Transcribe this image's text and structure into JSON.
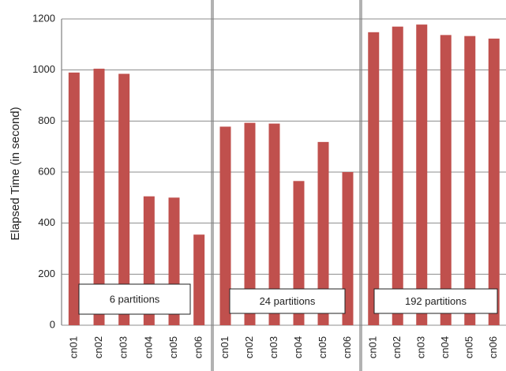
{
  "chart_data": [
    {
      "type": "bar",
      "y_label": "Elapsed Time (in second)",
      "categories": [
        "cn01",
        "cn02",
        "cn03",
        "cn04",
        "cn05",
        "cn06"
      ],
      "values": [
        990,
        1005,
        985,
        505,
        500,
        355
      ],
      "color": "#c0504d",
      "annotation": "6 partitions",
      "ylim": [
        0,
        1200
      ],
      "yticks": [
        0,
        200,
        400,
        600,
        800,
        1000,
        1200
      ],
      "grid": true
    },
    {
      "type": "bar",
      "categories": [
        "cn01",
        "cn02",
        "cn03",
        "cn04",
        "cn05",
        "cn06"
      ],
      "values": [
        778,
        793,
        790,
        565,
        718,
        600
      ],
      "color": "#c0504d",
      "annotation": "24 partitions",
      "ylim": [
        0,
        1200
      ]
    },
    {
      "type": "bar",
      "categories": [
        "cn01",
        "cn02",
        "cn03",
        "cn04",
        "cn05",
        "cn06"
      ],
      "values": [
        1148,
        1170,
        1178,
        1137,
        1133,
        1123
      ],
      "color": "#c0504d",
      "annotation": "192 partitions",
      "ylim": [
        0,
        1200
      ]
    }
  ]
}
